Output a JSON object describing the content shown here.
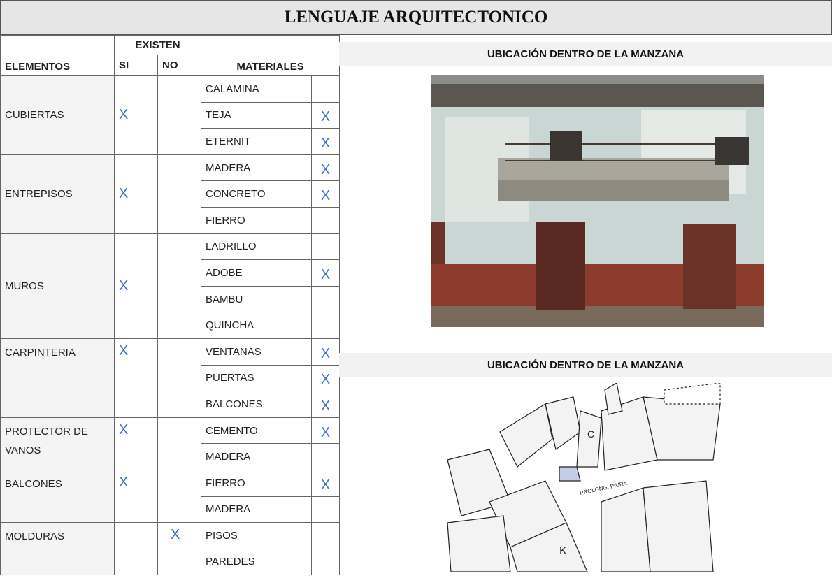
{
  "header": {
    "title": "LENGUAJE ARQUITECTONICO"
  },
  "table": {
    "headers": {
      "elementos": "ELEMENTOS",
      "existen": "EXISTEN",
      "si": "SI",
      "no": "NO",
      "materiales": "MATERIALES"
    },
    "groups": [
      {
        "element": "CUBIERTAS",
        "si": "X",
        "materials": [
          {
            "name": "CALAMINA"
          },
          {
            "name": "TEJA",
            "x": "X"
          },
          {
            "name": "ETERNIT",
            "x": "X"
          }
        ]
      },
      {
        "element": "ENTREPISOS",
        "si": "X",
        "materials": [
          {
            "name": "MADERA",
            "x": "X"
          },
          {
            "name": "CONCRETO",
            "x": "X"
          },
          {
            "name": "FIERRO"
          }
        ]
      },
      {
        "element": "MUROS",
        "si": "X",
        "materials": [
          {
            "name": "LADRILLO"
          },
          {
            "name": "ADOBE",
            "x": "X"
          },
          {
            "name": "BAMBU"
          },
          {
            "name": "QUINCHA"
          }
        ]
      },
      {
        "element": "CARPINTERIA",
        "si": "X",
        "materials": [
          {
            "name": "VENTANAS",
            "x": "X"
          },
          {
            "name": "PUERTAS",
            "x": "X"
          },
          {
            "name": "BALCONES",
            "x": "X"
          }
        ]
      },
      {
        "element": "PROTECTOR DE VANOS",
        "si": "X",
        "materials": [
          {
            "name": "CEMENTO",
            "x": "X"
          },
          {
            "name": "MADERA"
          }
        ]
      },
      {
        "element": "BALCONES",
        "si": "X",
        "materials": [
          {
            "name": "FIERRO",
            "x": "X"
          },
          {
            "name": "MADERA"
          }
        ]
      },
      {
        "element": "MOLDURAS",
        "no": "X",
        "materials": [
          {
            "name": "PISOS"
          },
          {
            "name": "PAREDES"
          }
        ]
      }
    ]
  },
  "panels": [
    {
      "title": "UBICACIÓN DENTRO DE LA MANZANA"
    },
    {
      "title": "UBICACIÓN DENTRO DE LA MANZANA"
    }
  ]
}
